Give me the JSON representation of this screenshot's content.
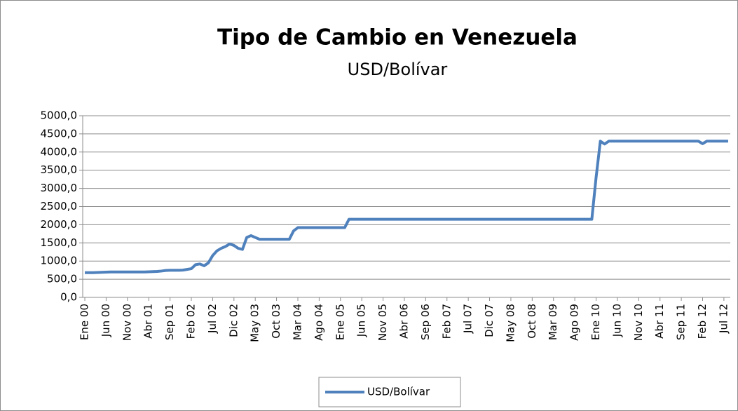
{
  "chart_data": {
    "type": "line",
    "title": "Tipo de Cambio en Venezuela",
    "subtitle": "USD/Bolívar",
    "categories": [
      "Ene 00",
      null,
      null,
      null,
      null,
      "Jun 00",
      null,
      null,
      null,
      null,
      "Nov 00",
      null,
      null,
      null,
      null,
      "Abr 01",
      null,
      null,
      null,
      null,
      "Sep 01",
      null,
      null,
      null,
      null,
      "Feb 02",
      null,
      null,
      null,
      null,
      "Jul 02",
      null,
      null,
      null,
      null,
      "Dic 02",
      null,
      null,
      null,
      null,
      "May 03",
      null,
      null,
      null,
      null,
      "Oct 03",
      null,
      null,
      null,
      null,
      "Mar 04",
      null,
      null,
      null,
      null,
      "Ago 04",
      null,
      null,
      null,
      null,
      "Ene 05",
      null,
      null,
      null,
      null,
      "Jun 05",
      null,
      null,
      null,
      null,
      "Nov 05",
      null,
      null,
      null,
      null,
      "Abr 06",
      null,
      null,
      null,
      null,
      "Sep 06",
      null,
      null,
      null,
      null,
      "Feb 07",
      null,
      null,
      null,
      null,
      "Jul 07",
      null,
      null,
      null,
      null,
      "Dic 07",
      null,
      null,
      null,
      null,
      "May 08",
      null,
      null,
      null,
      null,
      "Oct 08",
      null,
      null,
      null,
      null,
      "Mar 09",
      null,
      null,
      null,
      null,
      "Ago 09",
      null,
      null,
      null,
      null,
      "Ene 10",
      null,
      null,
      null,
      null,
      "Jun 10",
      null,
      null,
      null,
      null,
      "Nov 10",
      null,
      null,
      null,
      null,
      "Abr 11",
      null,
      null,
      null,
      null,
      "Sep 11",
      null,
      null,
      null,
      null,
      "Feb 12",
      null,
      null,
      null,
      null,
      "Jul 12",
      null
    ],
    "series": [
      {
        "name": "USD/Bolívar",
        "color": "#4f81bd",
        "values": [
          680,
          680,
          680,
          685,
          690,
          695,
          700,
          700,
          700,
          700,
          700,
          700,
          700,
          700,
          700,
          705,
          710,
          715,
          725,
          740,
          745,
          745,
          745,
          750,
          770,
          790,
          900,
          920,
          870,
          950,
          1150,
          1280,
          1350,
          1400,
          1470,
          1430,
          1350,
          1320,
          1650,
          1700,
          1650,
          1600,
          1600,
          1600,
          1600,
          1600,
          1600,
          1600,
          1600,
          1830,
          1920,
          1920,
          1920,
          1920,
          1920,
          1920,
          1920,
          1920,
          1920,
          1920,
          1920,
          1920,
          2150,
          2150,
          2150,
          2150,
          2150,
          2150,
          2150,
          2150,
          2150,
          2150,
          2150,
          2150,
          2150,
          2150,
          2150,
          2150,
          2150,
          2150,
          2150,
          2150,
          2150,
          2150,
          2150,
          2150,
          2150,
          2150,
          2150,
          2150,
          2150,
          2150,
          2150,
          2150,
          2150,
          2150,
          2150,
          2150,
          2150,
          2150,
          2150,
          2150,
          2150,
          2150,
          2150,
          2150,
          2150,
          2150,
          2150,
          2150,
          2150,
          2150,
          2150,
          2150,
          2150,
          2150,
          2150,
          2150,
          2150,
          2150,
          3300,
          4300,
          4220,
          4300,
          4300,
          4300,
          4300,
          4300,
          4300,
          4300,
          4300,
          4300,
          4300,
          4300,
          4300,
          4300,
          4300,
          4300,
          4300,
          4300,
          4300,
          4300,
          4300,
          4300,
          4300,
          4230,
          4300,
          4300,
          4300,
          4300,
          4300,
          4300
        ]
      }
    ],
    "ylim": [
      0,
      5000
    ],
    "yticks": [
      {
        "value": 0,
        "label": "0,0"
      },
      {
        "value": 500,
        "label": "500,0"
      },
      {
        "value": 1000,
        "label": "1000,0"
      },
      {
        "value": 1500,
        "label": "1500,0"
      },
      {
        "value": 2000,
        "label": "2000,0"
      },
      {
        "value": 2500,
        "label": "2500,0"
      },
      {
        "value": 3000,
        "label": "3000,0"
      },
      {
        "value": 3500,
        "label": "3500,0"
      },
      {
        "value": 4000,
        "label": "4000,0"
      },
      {
        "value": 4500,
        "label": "4500,0"
      },
      {
        "value": 5000,
        "label": "5000,0"
      }
    ],
    "grid": true,
    "legend": "bottom"
  }
}
